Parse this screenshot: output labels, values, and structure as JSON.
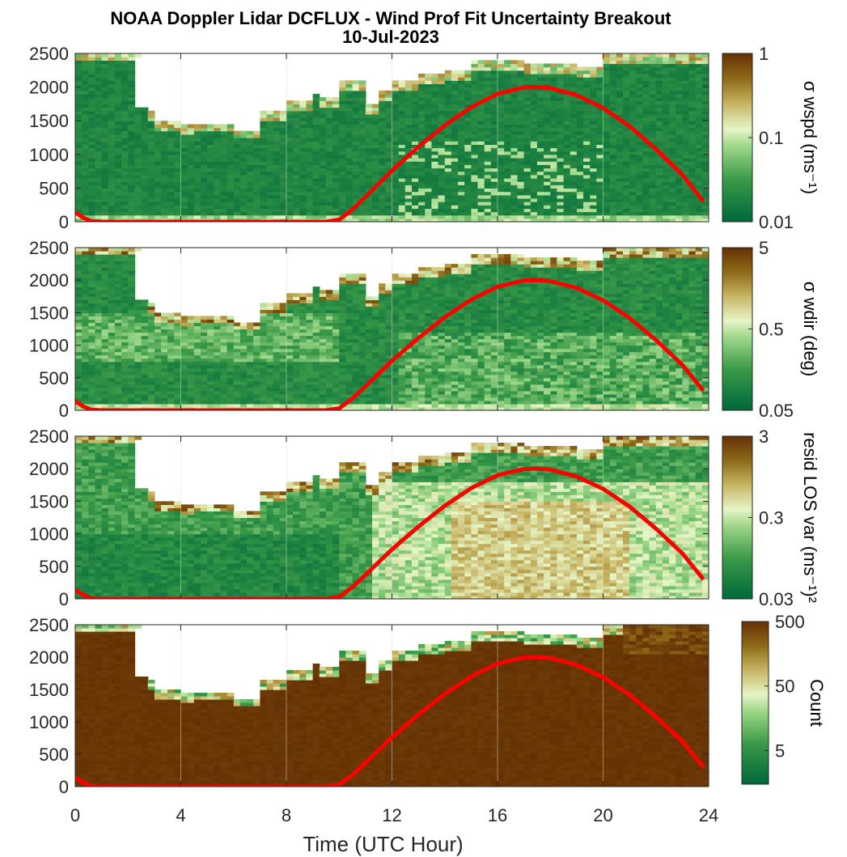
{
  "title_line1": "NOAA Doppler Lidar DCFLUX - Wind Prof Fit Uncertainty Breakout",
  "title_line2": "10-Jul-2023",
  "chart_data": [
    {
      "type": "heatmap",
      "panel": 1,
      "colorbar_label": "σ wspd (ms⁻¹)",
      "colorbar_scale": "log",
      "colorbar_range": [
        0.01,
        1
      ],
      "colorbar_ticks": [
        "1",
        "0.1",
        "0.01"
      ],
      "xlim": [
        0,
        24
      ],
      "ylim": [
        0,
        2500
      ],
      "x_ticks": [
        "0",
        "4",
        "8",
        "12",
        "16",
        "20",
        "24"
      ],
      "y_ticks": [
        "0",
        "500",
        "1000",
        "1500",
        "2000",
        "2500"
      ],
      "grid": true,
      "dominant_level": "low (~0.02)"
    },
    {
      "type": "heatmap",
      "panel": 2,
      "colorbar_label": "σ wdir (deg)",
      "colorbar_scale": "log",
      "colorbar_range": [
        0.05,
        5
      ],
      "colorbar_ticks": [
        "5",
        "0.5",
        "0.05"
      ],
      "xlim": [
        0,
        24
      ],
      "ylim": [
        0,
        2500
      ],
      "x_ticks": [
        "0",
        "4",
        "8",
        "12",
        "16",
        "20",
        "24"
      ],
      "y_ticks": [
        "0",
        "500",
        "1000",
        "1500",
        "2000",
        "2500"
      ],
      "grid": true
    },
    {
      "type": "heatmap",
      "panel": 3,
      "colorbar_label": "resid LOS var (ms⁻¹)²",
      "colorbar_scale": "log",
      "colorbar_range": [
        0.03,
        3
      ],
      "colorbar_ticks": [
        "3",
        "0.3",
        "0.03"
      ],
      "xlim": [
        0,
        24
      ],
      "ylim": [
        0,
        2500
      ],
      "x_ticks": [
        "0",
        "4",
        "8",
        "12",
        "16",
        "20",
        "24"
      ],
      "y_ticks": [
        "0",
        "500",
        "1000",
        "1500",
        "2000",
        "2500"
      ],
      "grid": true
    },
    {
      "type": "heatmap",
      "panel": 4,
      "colorbar_label": "Count",
      "colorbar_scale": "log",
      "colorbar_range": [
        1.5,
        500
      ],
      "colorbar_ticks": [
        "500",
        "50",
        "5"
      ],
      "xlim": [
        0,
        24
      ],
      "ylim": [
        0,
        2500
      ],
      "x_ticks": [
        "0",
        "4",
        "8",
        "12",
        "16",
        "20",
        "24"
      ],
      "y_ticks": [
        "0",
        "500",
        "1000",
        "1500",
        "2000",
        "2500"
      ],
      "xlabel": "Time (UTC Hour)",
      "grid": true
    }
  ],
  "overlay_line": {
    "color": "#ff0000",
    "x": [
      0,
      0.3,
      0.6,
      1,
      2,
      4,
      6,
      8,
      9.5,
      10,
      10.5,
      11,
      12,
      13,
      14,
      15,
      16,
      17,
      17.5,
      18,
      19,
      20,
      21,
      22,
      23,
      23.8
    ],
    "y": [
      140,
      60,
      10,
      0,
      0,
      0,
      0,
      0,
      0,
      30,
      180,
      370,
      760,
      1110,
      1430,
      1700,
      1900,
      1995,
      2000,
      1985,
      1880,
      1690,
      1420,
      1080,
      700,
      300
    ]
  },
  "colors": {
    "green_dark": "#00683a",
    "green_mid": "#4daa4a",
    "green_light": "#c8eab0",
    "tan": "#c8b060",
    "brown_dark": "#653004",
    "no_data": "#ffffff"
  }
}
